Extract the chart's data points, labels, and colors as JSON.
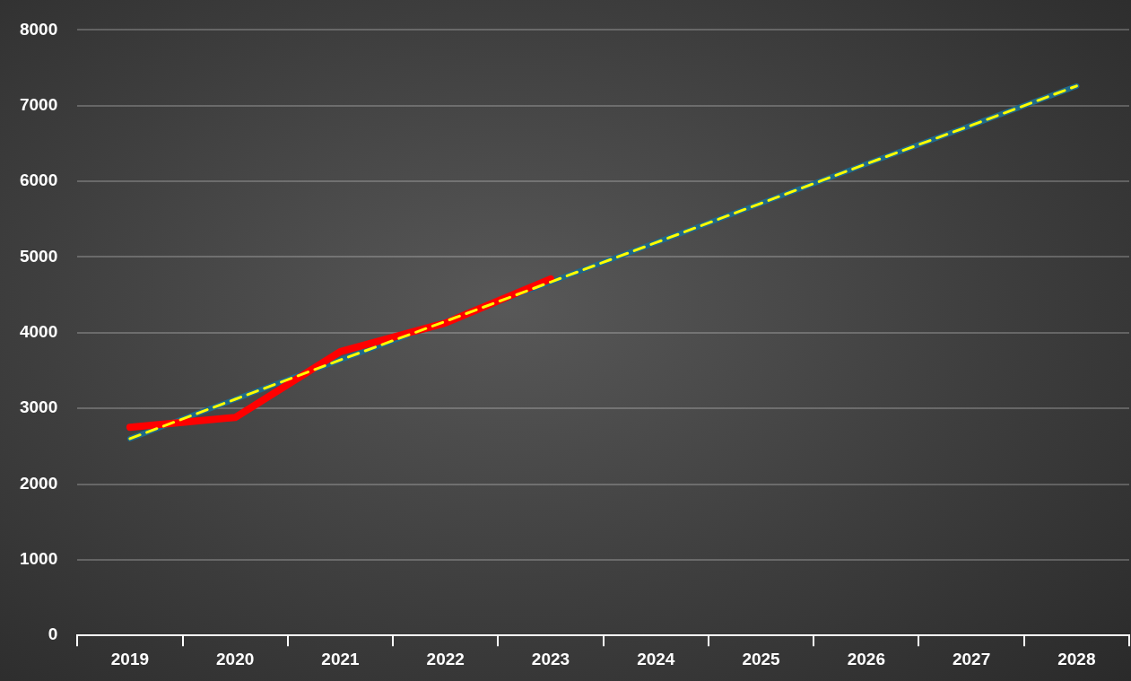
{
  "chart_data": {
    "type": "line",
    "categories": [
      "2019",
      "2020",
      "2021",
      "2022",
      "2023",
      "2024",
      "2025",
      "2026",
      "2027",
      "2028"
    ],
    "series": [
      {
        "color": "#ff0000",
        "values": [
          2750,
          2880,
          3750,
          4130,
          4710,
          null,
          null,
          null,
          null,
          null
        ],
        "line_style": "solid"
      },
      {
        "color": "#1f6a8a",
        "values": [
          2600,
          3120,
          3640,
          4150,
          4670,
          5190,
          5710,
          6230,
          6740,
          7260
        ],
        "line_style": "solid"
      },
      {
        "color": "#ffff00",
        "values": [
          2600,
          3120,
          3640,
          4150,
          4670,
          5190,
          5710,
          6230,
          6740,
          7260
        ],
        "line_style": "dashed"
      }
    ],
    "ylim": [
      0,
      8000
    ],
    "yticks": [
      0,
      1000,
      2000,
      3000,
      4000,
      5000,
      6000,
      7000,
      8000
    ],
    "grid": "y",
    "legend": false,
    "marker": "none"
  }
}
